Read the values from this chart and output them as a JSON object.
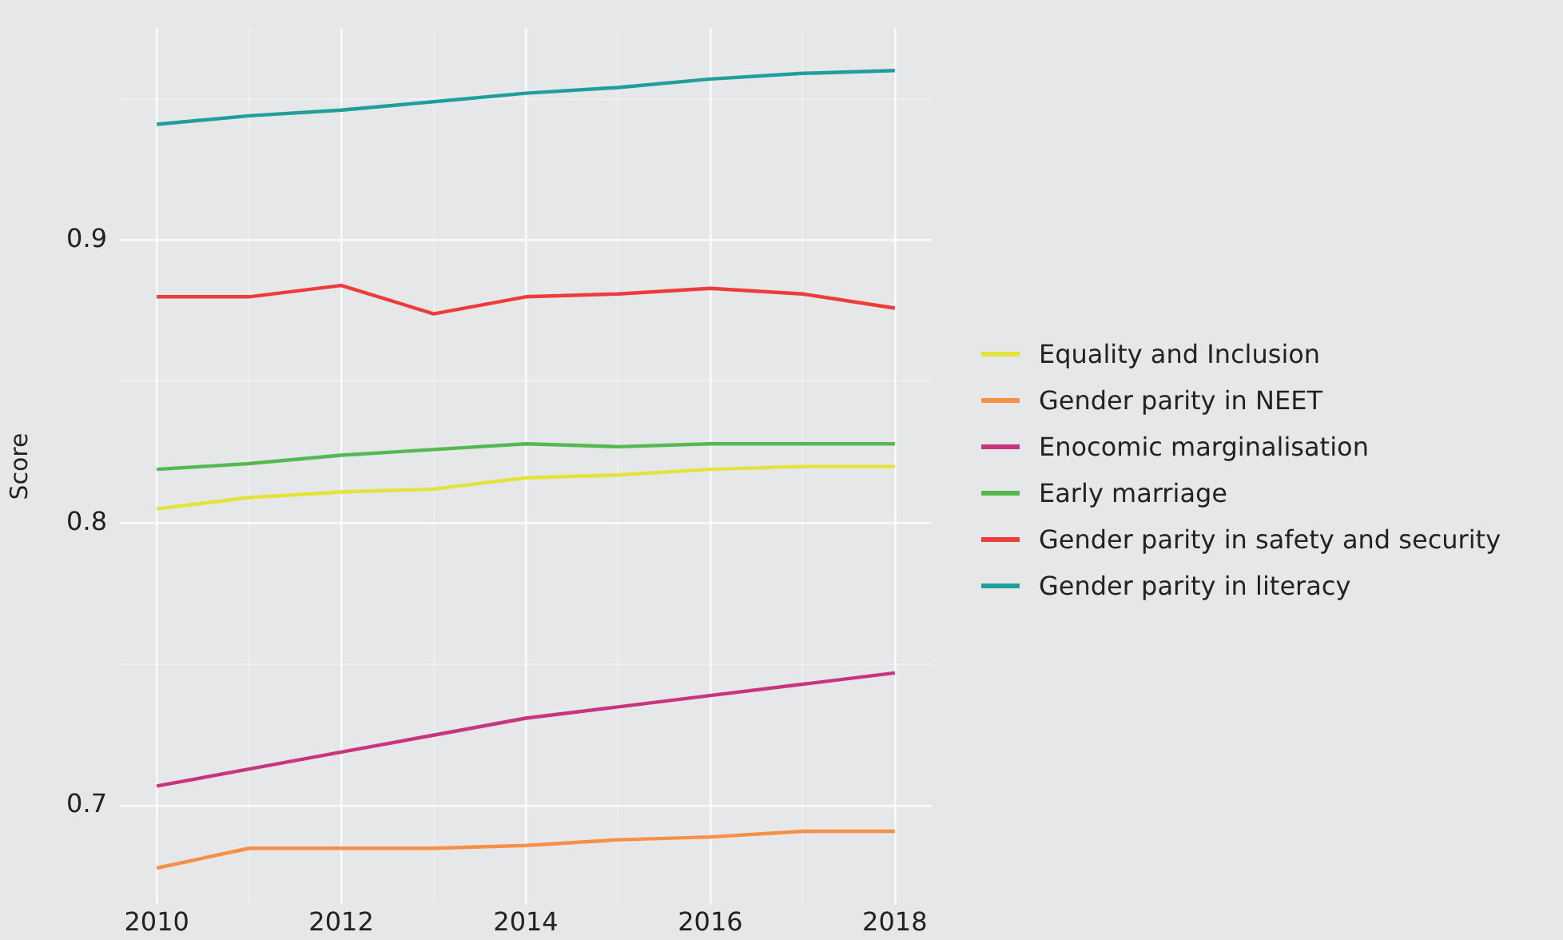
{
  "chart_data": {
    "type": "line",
    "ylabel": "Score",
    "x": [
      2010,
      2011,
      2012,
      2013,
      2014,
      2015,
      2016,
      2017,
      2018
    ],
    "xlim": [
      2009.6,
      2018.4
    ],
    "ylim": [
      0.665,
      0.975
    ],
    "xticks": [
      2010,
      {
        "value": 2011,
        "label": null
      },
      2012,
      {
        "value": 2013,
        "label": null
      },
      2014,
      {
        "value": 2015,
        "label": null
      },
      2016,
      {
        "value": 2017,
        "label": null
      },
      2018
    ],
    "yticks": [
      0.7,
      {
        "value": 0.75,
        "label": null
      },
      0.8,
      {
        "value": 0.85,
        "label": null
      },
      0.9,
      {
        "value": 0.95,
        "label": null
      }
    ],
    "grid": true,
    "legend": "right",
    "marker": "none",
    "line_style": "solid",
    "series": [
      {
        "name": "Equality and Inclusion",
        "color": "#e3e33a",
        "values": [
          0.805,
          0.809,
          0.811,
          0.812,
          0.816,
          0.817,
          0.819,
          0.82,
          0.82
        ]
      },
      {
        "name": "Gender parity in NEET",
        "color": "#f78f45",
        "values": [
          0.678,
          0.685,
          0.685,
          0.685,
          0.686,
          0.688,
          0.689,
          0.691,
          0.691
        ]
      },
      {
        "name": "Enocomic marginalisation",
        "color": "#c8347f",
        "values": [
          0.707,
          0.713,
          0.719,
          0.725,
          0.731,
          0.735,
          0.739,
          0.743,
          0.747
        ]
      },
      {
        "name": "Early marriage",
        "color": "#55b94e",
        "values": [
          0.819,
          0.821,
          0.824,
          0.826,
          0.828,
          0.827,
          0.828,
          0.828,
          0.828
        ]
      },
      {
        "name": "Gender parity in safety and security",
        "color": "#ee3b3b",
        "values": [
          0.88,
          0.88,
          0.884,
          0.874,
          0.88,
          0.881,
          0.883,
          0.881,
          0.876
        ]
      },
      {
        "name": "Gender parity in literacy",
        "color": "#1f9e9c",
        "values": [
          0.941,
          0.944,
          0.946,
          0.949,
          0.952,
          0.954,
          0.957,
          0.959,
          0.96
        ]
      }
    ]
  }
}
